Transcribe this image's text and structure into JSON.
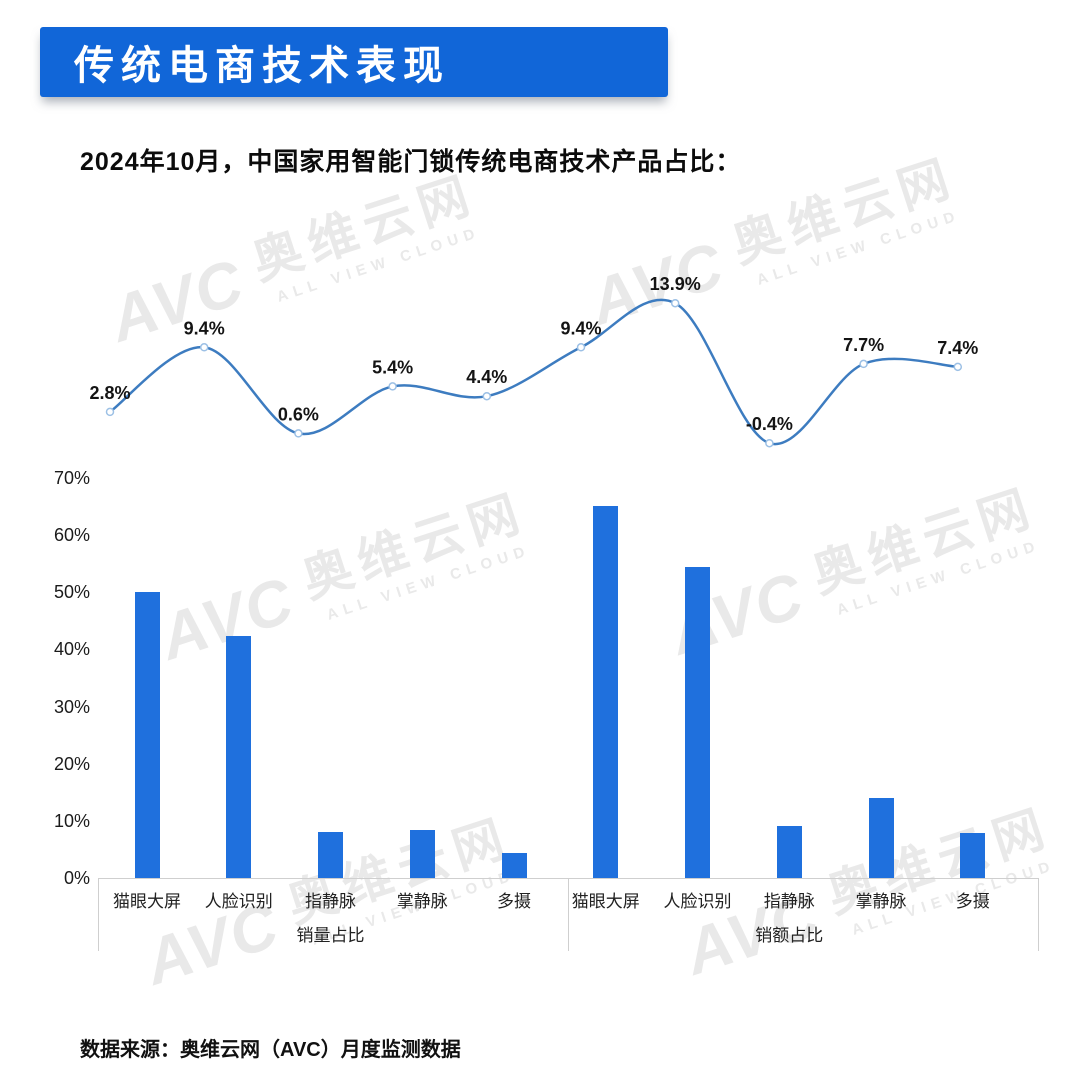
{
  "header": {
    "title": "传统电商技术表现"
  },
  "subtitle": "2024年10月，中国家用智能门锁传统电商技术产品占比：",
  "watermark": {
    "brand_short": "AVC",
    "brand_cn": "奥维云网",
    "brand_en": "ALL VIEW CLOUD"
  },
  "chart_data": {
    "type": "bar",
    "title": "2024年10月，中国家用智能门锁传统电商技术产品占比：",
    "categories": [
      "猫眼大屏",
      "人脸识别",
      "指静脉",
      "掌静脉",
      "多摄"
    ],
    "group_labels": [
      "销量占比",
      "销额占比"
    ],
    "bar": {
      "type": "bar",
      "series": [
        {
          "name": "销量占比",
          "values": [
            50.0,
            42.4,
            8.1,
            8.4,
            4.4
          ]
        },
        {
          "name": "销额占比",
          "values": [
            65.1,
            54.4,
            9.1,
            14.0,
            7.9
          ]
        }
      ],
      "ylim": [
        0,
        70
      ],
      "yticks": [
        "0%",
        "10%",
        "20%",
        "30%",
        "40%",
        "50%",
        "60%",
        "70%"
      ],
      "grid": "off",
      "bar_color": "#1f70dd"
    },
    "line": {
      "type": "line",
      "values": [
        2.8,
        9.4,
        0.6,
        5.4,
        4.4,
        9.4,
        13.9,
        -0.4,
        7.7,
        7.4
      ],
      "labels": [
        "2.8%",
        "9.4%",
        "0.6%",
        "5.4%",
        "4.4%",
        "9.4%",
        "13.9%",
        "-0.4%",
        "7.7%",
        "7.4%"
      ],
      "line_color": "#3d7cc0",
      "point_fill": "#ffffff",
      "point_stroke": "#9cc0e5",
      "label_color": "#141414"
    }
  },
  "footer": {
    "source": "数据来源：奥维云网（AVC）月度监测数据"
  }
}
